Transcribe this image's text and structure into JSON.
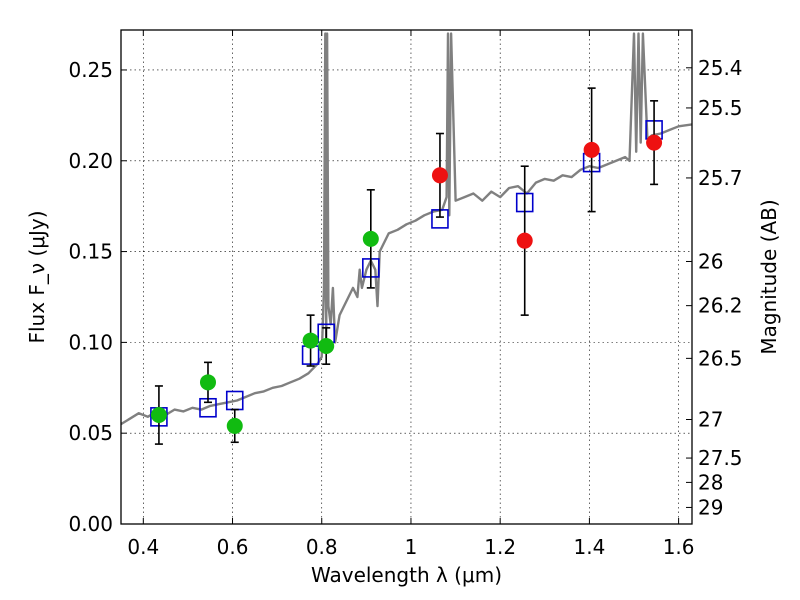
{
  "chart_data": {
    "type": "scatter",
    "xlabel": "Wavelength λ (μm)",
    "ylabel": "Flux F_ν (μJy)",
    "ylabel_right": "Magnitude (AB)",
    "xlim": [
      0.35,
      1.63
    ],
    "ylim": [
      0.0,
      0.272
    ],
    "grid": true,
    "x_ticks": [
      0.4,
      0.6,
      0.8,
      1.0,
      1.2,
      1.4,
      1.6
    ],
    "x_tick_labels": [
      "0.4",
      "0.6",
      "0.8",
      "1",
      "1.2",
      "1.4",
      "1.6"
    ],
    "y_ticks": [
      0.0,
      0.05,
      0.1,
      0.15,
      0.2,
      0.25
    ],
    "y_tick_labels": [
      "0.00",
      "0.05",
      "0.10",
      "0.15",
      "0.20",
      "0.25"
    ],
    "mag_ticks": [
      "25.4",
      "25.5",
      "25.7",
      "26",
      "26.2",
      "26.5",
      "27",
      "27.5",
      "28",
      "29"
    ],
    "series": [
      {
        "name": "model-spectrum",
        "style": "line",
        "color": "#808080",
        "x": [
          0.35,
          0.37,
          0.39,
          0.41,
          0.43,
          0.45,
          0.47,
          0.49,
          0.51,
          0.53,
          0.55,
          0.57,
          0.59,
          0.61,
          0.63,
          0.65,
          0.67,
          0.69,
          0.71,
          0.73,
          0.75,
          0.77,
          0.79,
          0.8,
          0.805,
          0.808,
          0.81,
          0.812,
          0.815,
          0.82,
          0.825,
          0.83,
          0.84,
          0.85,
          0.86,
          0.87,
          0.88,
          0.885,
          0.89,
          0.9,
          0.91,
          0.92,
          0.925,
          0.93,
          0.94,
          0.95,
          0.97,
          0.99,
          1.01,
          1.03,
          1.05,
          1.07,
          1.08,
          1.083,
          1.086,
          1.09,
          1.1,
          1.12,
          1.14,
          1.16,
          1.18,
          1.2,
          1.22,
          1.24,
          1.26,
          1.28,
          1.3,
          1.32,
          1.34,
          1.36,
          1.38,
          1.4,
          1.42,
          1.44,
          1.46,
          1.48,
          1.49,
          1.5,
          1.505,
          1.51,
          1.515,
          1.52,
          1.53,
          1.54,
          1.56,
          1.58,
          1.6,
          1.63
        ],
        "y": [
          0.055,
          0.058,
          0.061,
          0.059,
          0.062,
          0.06,
          0.063,
          0.062,
          0.064,
          0.063,
          0.065,
          0.066,
          0.067,
          0.068,
          0.07,
          0.072,
          0.073,
          0.075,
          0.076,
          0.078,
          0.08,
          0.083,
          0.088,
          0.092,
          0.13,
          0.27,
          0.1,
          0.27,
          0.12,
          0.11,
          0.13,
          0.1,
          0.115,
          0.12,
          0.125,
          0.13,
          0.125,
          0.14,
          0.13,
          0.14,
          0.145,
          0.14,
          0.12,
          0.15,
          0.155,
          0.16,
          0.162,
          0.165,
          0.167,
          0.17,
          0.172,
          0.173,
          0.18,
          0.27,
          0.17,
          0.27,
          0.178,
          0.18,
          0.182,
          0.178,
          0.183,
          0.18,
          0.185,
          0.186,
          0.182,
          0.188,
          0.19,
          0.189,
          0.192,
          0.191,
          0.195,
          0.197,
          0.196,
          0.198,
          0.2,
          0.202,
          0.2,
          0.27,
          0.205,
          0.27,
          0.21,
          0.27,
          0.212,
          0.214,
          0.215,
          0.217,
          0.219,
          0.22
        ]
      },
      {
        "name": "model-photometry",
        "style": "open-square",
        "color": "#0000cc",
        "x": [
          0.435,
          0.545,
          0.605,
          0.775,
          0.81,
          0.91,
          1.065,
          1.255,
          1.405,
          1.545
        ],
        "y": [
          0.059,
          0.064,
          0.068,
          0.093,
          0.105,
          0.141,
          0.168,
          0.177,
          0.199,
          0.217
        ]
      },
      {
        "name": "observed-optical",
        "style": "filled-circle",
        "color": "#11bb11",
        "x": [
          0.435,
          0.545,
          0.605,
          0.775,
          0.81,
          0.91
        ],
        "y": [
          0.06,
          0.078,
          0.054,
          0.101,
          0.098,
          0.157
        ],
        "err": [
          0.016,
          0.011,
          0.009,
          0.014,
          0.01,
          0.027
        ]
      },
      {
        "name": "observed-infrared",
        "style": "filled-circle",
        "color": "#ee1111",
        "x": [
          1.065,
          1.255,
          1.405,
          1.545
        ],
        "y": [
          0.192,
          0.156,
          0.206,
          0.21
        ],
        "err": [
          0.023,
          0.041,
          0.034,
          0.023
        ]
      }
    ]
  }
}
